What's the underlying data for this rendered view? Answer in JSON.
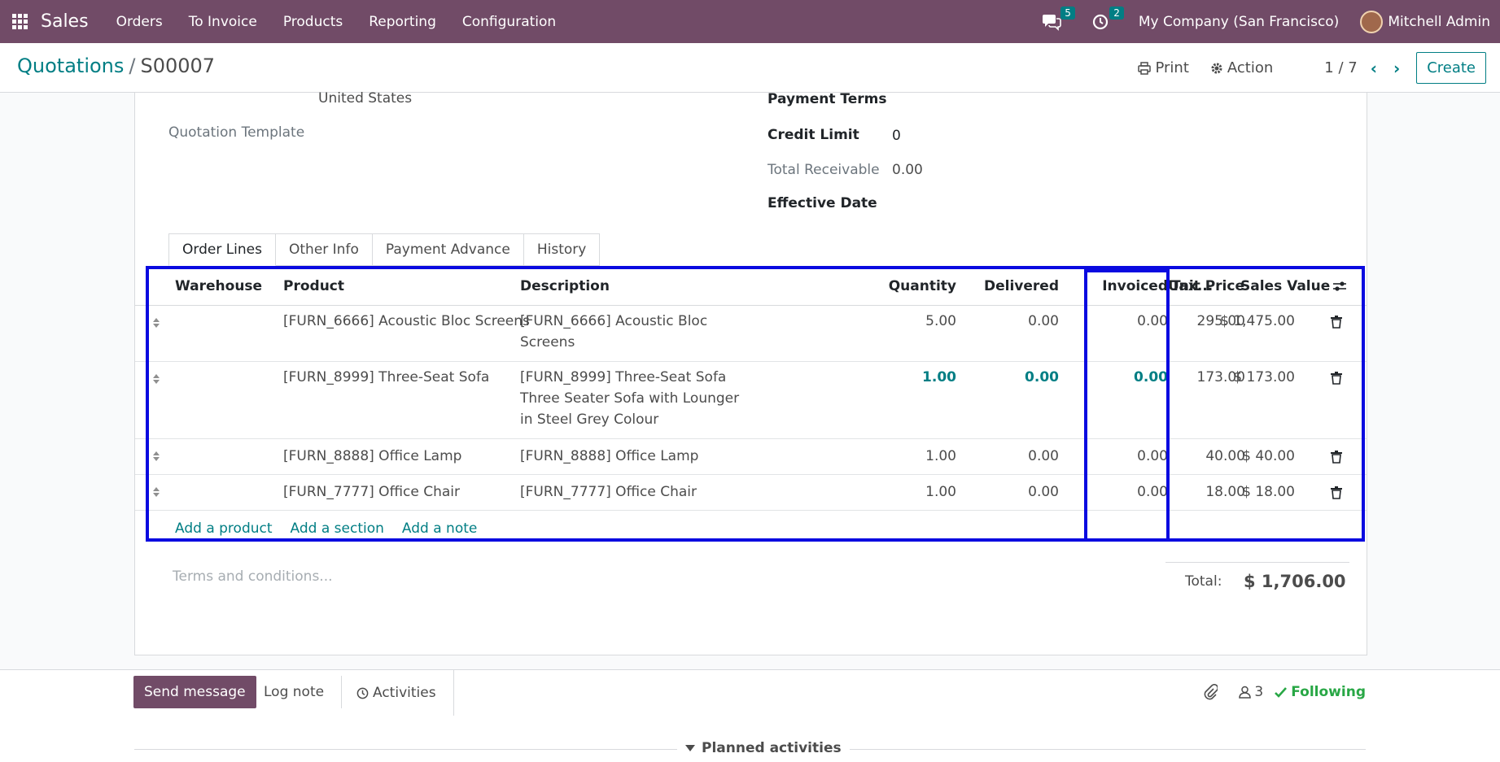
{
  "topbar": {
    "app_name": "Sales",
    "menu": [
      "Orders",
      "To Invoice",
      "Products",
      "Reporting",
      "Configuration"
    ],
    "messages_count": "5",
    "activities_count": "2",
    "company": "My Company (San Francisco)",
    "user": "Mitchell Admin"
  },
  "control": {
    "breadcrumb_parent": "Quotations",
    "breadcrumb_separator": "/",
    "record_name": "S00007",
    "print_label": "Print",
    "action_label": "Action",
    "pager": "1 / 7",
    "create_label": "Create"
  },
  "form": {
    "country": "United States",
    "quotation_template_label": "Quotation Template",
    "payment_terms_label": "Payment Terms",
    "credit_limit_label": "Credit Limit",
    "credit_limit_value": "0",
    "total_receivable_label": "Total Receivable",
    "total_receivable_value": "0.00",
    "effective_date_label": "Effective Date"
  },
  "tabs": [
    "Order Lines",
    "Other Info",
    "Payment Advance",
    "History"
  ],
  "table": {
    "headers": {
      "warehouse": "Warehouse",
      "product": "Product",
      "description": "Description",
      "quantity": "Quantity",
      "delivered": "Delivered",
      "invoiced": "Invoiced",
      "unit_price": "Unit Price",
      "taxes": "Tax...",
      "sales_value": "Sales Value"
    },
    "rows": [
      {
        "product": "[FURN_6666] Acoustic Bloc Screens",
        "description": "[FURN_6666] Acoustic Bloc Screens",
        "quantity": "5.00",
        "delivered": "0.00",
        "invoiced": "0.00",
        "unit_price": "295.00",
        "sales_value": "$ 1,475.00"
      },
      {
        "product": "[FURN_8999] Three-Seat Sofa",
        "description": "[FURN_8999] Three-Seat Sofa Three Seater Sofa with Lounger in Steel Grey Colour",
        "quantity": "1.00",
        "delivered": "0.00",
        "invoiced": "0.00",
        "unit_price": "173.00",
        "sales_value": "$ 173.00"
      },
      {
        "product": "[FURN_8888] Office Lamp",
        "description": "[FURN_8888] Office Lamp",
        "quantity": "1.00",
        "delivered": "0.00",
        "invoiced": "0.00",
        "unit_price": "40.00",
        "sales_value": "$ 40.00"
      },
      {
        "product": "[FURN_7777] Office Chair",
        "description": "[FURN_7777] Office Chair",
        "quantity": "1.00",
        "delivered": "0.00",
        "invoiced": "0.00",
        "unit_price": "18.00",
        "sales_value": "$ 18.00"
      }
    ],
    "add_product": "Add a product",
    "add_section": "Add a section",
    "add_note": "Add a note"
  },
  "totals": {
    "terms_placeholder": "Terms and conditions...",
    "total_label": "Total:",
    "total_value": "$ 1,706.00"
  },
  "chatter": {
    "send_message": "Send message",
    "log_note": "Log note",
    "activities": "Activities",
    "followers_count": "3",
    "following": "Following",
    "planned_activities": "Planned activities"
  },
  "colors": {
    "topbar": "#714b67",
    "accent": "#017e84",
    "highlight": "#0a0ae0",
    "following": "#28a745"
  }
}
